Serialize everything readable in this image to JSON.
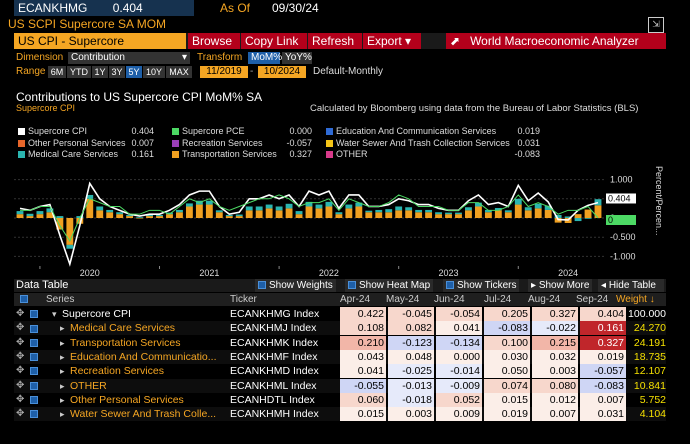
{
  "header": {
    "ticker": "ECANKHMG",
    "last": "0.404",
    "asof_label": "As Of",
    "asof_date": "09/30/24",
    "subtitle": "US SCPI Supercore SA MOM"
  },
  "toolbar": {
    "title": "US CPI - Supercore",
    "browse": "Browse",
    "copy_link": "Copy Link",
    "refresh": "Refresh",
    "export": "Export ▾",
    "wma": "World Macroeconomic Analyzer"
  },
  "controls": {
    "dimension_label": "Dimension",
    "dimension_value": "Contribution",
    "transform_label": "Transform",
    "transform_mom": "MoM%",
    "transform_yoy": "YoY%",
    "range_label": "Range",
    "ranges": [
      "6M",
      "YTD",
      "1Y",
      "3Y",
      "5Y",
      "10Y",
      "MAX"
    ],
    "start": "11/2019",
    "end": "10/2024",
    "freq": "Default-Monthly"
  },
  "chart": {
    "title": "Contributions to US Supercore CPI MoM% SA",
    "subtitle": "Supercore CPI",
    "note": "Calculated by Bloomberg using data from the Bureau of Labor Statistics (BLS)",
    "legend": [
      {
        "label": "Supercore CPI",
        "value": "0.404",
        "color": "#ffffff"
      },
      {
        "label": "Supercore PCE",
        "value": "0.000",
        "color": "#4cd964"
      },
      {
        "label": "Education And Communication Services",
        "value": "0.019",
        "color": "#2f6bd6"
      },
      {
        "label": "Other Personal Services",
        "value": "0.007",
        "color": "#e8662a"
      },
      {
        "label": "Recreation Services",
        "value": "-0.057",
        "color": "#9b3fb8"
      },
      {
        "label": "Water Sewer And Trash Collection Services",
        "value": "0.031",
        "color": "#f5c518"
      },
      {
        "label": "Medical Care Services",
        "value": "0.161",
        "color": "#2bb5b0"
      },
      {
        "label": "Transportation Services",
        "value": "0.327",
        "color": "#f0a020"
      },
      {
        "label": "OTHER",
        "value": "-0.083",
        "color": "#d83a8a"
      }
    ],
    "axis_right_label": "Percent/Percen...",
    "y_ticks": [
      "1.000",
      "0.500",
      "0",
      "-0.500",
      "-1.000"
    ],
    "x_ticks": [
      "2020",
      "2021",
      "2022",
      "2023",
      "2024"
    ],
    "last_labels": [
      "0.404",
      "0"
    ]
  },
  "chart_data": {
    "type": "bar",
    "ylim": [
      -1.25,
      1.25
    ],
    "x": [
      "2019-11",
      "2019-12",
      "2020-01",
      "2020-02",
      "2020-03",
      "2020-04",
      "2020-05",
      "2020-06",
      "2020-07",
      "2020-08",
      "2020-09",
      "2020-10",
      "2020-11",
      "2020-12",
      "2021-01",
      "2021-02",
      "2021-03",
      "2021-04",
      "2021-05",
      "2021-06",
      "2021-07",
      "2021-08",
      "2021-09",
      "2021-10",
      "2021-11",
      "2021-12",
      "2022-01",
      "2022-02",
      "2022-03",
      "2022-04",
      "2022-05",
      "2022-06",
      "2022-07",
      "2022-08",
      "2022-09",
      "2022-10",
      "2022-11",
      "2022-12",
      "2023-01",
      "2023-02",
      "2023-03",
      "2023-04",
      "2023-05",
      "2023-06",
      "2023-07",
      "2023-08",
      "2023-09",
      "2023-10",
      "2023-11",
      "2023-12",
      "2024-01",
      "2024-02",
      "2024-03",
      "2024-04",
      "2024-05",
      "2024-06",
      "2024-07",
      "2024-08",
      "2024-09"
    ],
    "series": [
      {
        "name": "Supercore CPI",
        "values": [
          0.25,
          0.2,
          0.3,
          0.35,
          -0.45,
          -1.2,
          -0.2,
          0.9,
          0.5,
          0.3,
          0.2,
          0.1,
          0.05,
          0.1,
          0.1,
          0.2,
          0.35,
          0.6,
          0.7,
          0.7,
          0.3,
          0.1,
          0.15,
          0.5,
          0.5,
          0.6,
          0.5,
          0.6,
          0.3,
          0.7,
          0.6,
          0.7,
          0.25,
          0.6,
          0.6,
          0.3,
          0.3,
          0.35,
          0.5,
          0.45,
          0.35,
          0.35,
          0.25,
          0.2,
          0.2,
          0.45,
          0.6,
          0.35,
          0.4,
          0.3,
          0.85,
          0.45,
          0.65,
          0.42,
          -0.04,
          -0.05,
          0.2,
          0.33,
          0.4
        ]
      },
      {
        "name": "Supercore PCE",
        "values": [
          0.2,
          0.2,
          0.3,
          0.3,
          -0.2,
          -0.6,
          0.0,
          0.5,
          0.4,
          0.3,
          0.3,
          0.1,
          0.1,
          0.2,
          0.2,
          0.1,
          0.3,
          0.5,
          0.4,
          0.5,
          0.3,
          0.2,
          0.3,
          0.4,
          0.5,
          0.5,
          0.6,
          0.5,
          0.3,
          0.4,
          0.4,
          0.5,
          0.2,
          0.5,
          0.4,
          0.3,
          0.3,
          0.4,
          0.6,
          0.5,
          0.3,
          0.3,
          0.3,
          0.2,
          0.2,
          0.4,
          0.4,
          0.2,
          0.2,
          0.3,
          0.6,
          0.3,
          0.4,
          0.3,
          0.1,
          0.2,
          0.2,
          0.3,
          0.0
        ]
      },
      {
        "name": "Transportation Services",
        "values": [
          0.1,
          0.05,
          0.1,
          0.15,
          -0.3,
          -0.7,
          -0.15,
          0.5,
          0.2,
          0.15,
          0.1,
          0.05,
          0.0,
          0.05,
          0.05,
          0.1,
          0.15,
          0.3,
          0.35,
          0.35,
          0.15,
          0.05,
          0.05,
          0.2,
          0.2,
          0.25,
          0.2,
          0.25,
          0.1,
          0.3,
          0.25,
          0.3,
          0.1,
          0.25,
          0.3,
          0.15,
          0.15,
          0.15,
          0.2,
          0.2,
          0.15,
          0.15,
          0.1,
          0.1,
          0.1,
          0.2,
          0.3,
          0.15,
          0.2,
          0.15,
          0.35,
          0.2,
          0.25,
          0.21,
          -0.12,
          -0.13,
          0.1,
          0.22,
          0.33
        ]
      },
      {
        "name": "Medical Care Services",
        "values": [
          0.08,
          0.06,
          0.08,
          0.1,
          0.05,
          -0.1,
          0.05,
          0.1,
          0.1,
          0.06,
          0.05,
          0.03,
          0.02,
          0.03,
          0.03,
          0.04,
          0.06,
          0.08,
          0.1,
          0.1,
          0.05,
          0.03,
          0.04,
          0.1,
          0.1,
          0.1,
          0.1,
          0.12,
          0.08,
          0.12,
          0.1,
          0.12,
          0.05,
          0.1,
          0.1,
          0.04,
          0.06,
          0.08,
          0.1,
          0.08,
          0.06,
          0.06,
          0.05,
          0.04,
          0.04,
          0.08,
          0.1,
          0.06,
          0.06,
          0.05,
          0.15,
          0.08,
          0.12,
          0.11,
          0.08,
          0.04,
          -0.08,
          -0.02,
          0.16
        ]
      }
    ]
  },
  "table_bar": {
    "label": "Data Table",
    "show_weights": "Show Weights",
    "show_heat_map": "Show Heat Map",
    "show_tickers": "Show Tickers",
    "show_more": "Show More",
    "hide_table": "Hide Table"
  },
  "table": {
    "columns": [
      "Series",
      "Ticker",
      "Apr-24",
      "May-24",
      "Jun-24",
      "Jul-24",
      "Aug-24",
      "Sep-24",
      "Weight"
    ],
    "rows": [
      {
        "name": "Supercore CPI",
        "ticker": "ECANKHMG Index",
        "vals": [
          "0.422",
          "-0.045",
          "-0.054",
          "0.205",
          "0.327",
          "0.404"
        ],
        "weight": "100.000",
        "top": true
      },
      {
        "name": "Medical Care Services",
        "ticker": "ECANKHMJ Index",
        "vals": [
          "0.108",
          "0.082",
          "0.041",
          "-0.083",
          "-0.022",
          "0.161"
        ],
        "weight": "24.270"
      },
      {
        "name": "Transportation Services",
        "ticker": "ECANKHMK Index",
        "vals": [
          "0.210",
          "-0.123",
          "-0.134",
          "0.100",
          "0.215",
          "0.327"
        ],
        "weight": "24.191"
      },
      {
        "name": "Education And Communicatio...",
        "ticker": "ECANKHMF Index",
        "vals": [
          "0.043",
          "0.048",
          "0.000",
          "0.030",
          "0.032",
          "0.019"
        ],
        "weight": "18.735"
      },
      {
        "name": "Recreation Services",
        "ticker": "ECANKHMD Index",
        "vals": [
          "0.041",
          "-0.025",
          "-0.014",
          "0.050",
          "0.003",
          "-0.057"
        ],
        "weight": "12.107"
      },
      {
        "name": "OTHER",
        "ticker": "ECANKHML Index",
        "vals": [
          "-0.055",
          "-0.013",
          "-0.009",
          "0.074",
          "0.080",
          "-0.083"
        ],
        "weight": "10.841"
      },
      {
        "name": "Other Personal Services",
        "ticker": "ECANHDTL Index",
        "vals": [
          "0.060",
          "-0.018",
          "0.052",
          "0.015",
          "0.012",
          "0.007"
        ],
        "weight": "5.752"
      },
      {
        "name": "Water Sewer And Trash Colle...",
        "ticker": "ECANKHMH Index",
        "vals": [
          "0.015",
          "0.003",
          "0.009",
          "0.019",
          "0.007",
          "0.031"
        ],
        "weight": "4.104"
      }
    ]
  }
}
